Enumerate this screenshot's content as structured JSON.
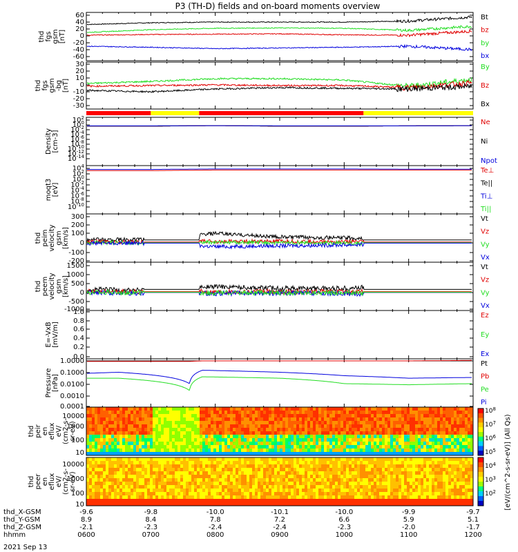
{
  "title": "P3 (TH-D) fields and on-board moments overview",
  "date_label": "2021 Sep 13",
  "colors": {
    "black": "#000000",
    "red": "#e00000",
    "green": "#22dd22",
    "blue": "#0000dd",
    "yellow": "#ffff00",
    "barred": "#ff0000"
  },
  "time_axis": {
    "rows": [
      {
        "label": "thd_X-GSM",
        "values": [
          "-9.6",
          "-9.8",
          "-10.0",
          "-10.1",
          "-10.0",
          "-9.9",
          "-9.7"
        ]
      },
      {
        "label": "thd_Y-GSM",
        "values": [
          "8.9",
          "8.4",
          "7.8",
          "7.2",
          "6.6",
          "5.9",
          "5.1"
        ]
      },
      {
        "label": "thd_Z-GSM",
        "values": [
          "-2.1",
          "-2.3",
          "-2.4",
          "-2.4",
          "-2.3",
          "-2.0",
          "-1.7"
        ]
      },
      {
        "label": "hhmm",
        "values": [
          "0600",
          "0700",
          "0800",
          "0900",
          "1000",
          "1100",
          "1200"
        ]
      }
    ]
  },
  "colorbar": {
    "label": "[eV/(cm^2-s-sr-eV)] (All Qs)",
    "ticks": [
      "10^8",
      "10^7",
      "10^6",
      "10^5",
      "10^4",
      "10^3",
      "10^2"
    ]
  },
  "chart_data": [
    {
      "type": "line",
      "ylabel": "thd fgs gsm [nT]",
      "yticks": [
        "60",
        "40",
        "20",
        "0",
        "-20",
        "-40",
        "-60"
      ],
      "ylim": [
        -60,
        60
      ],
      "legend": [
        {
          "name": "Bt",
          "color": "black"
        },
        {
          "name": "bz",
          "color": "red"
        },
        {
          "name": "by",
          "color": "green"
        },
        {
          "name": "bx",
          "color": "blue"
        }
      ],
      "x": [
        6,
        7,
        8,
        9,
        10,
        11,
        12
      ],
      "series": [
        {
          "name": "Bt",
          "values": [
            33,
            38,
            40,
            40,
            40,
            43,
            55
          ]
        },
        {
          "name": "bz",
          "values": [
            2,
            4,
            5,
            6,
            3,
            2,
            14
          ]
        },
        {
          "name": "by",
          "values": [
            10,
            18,
            22,
            23,
            22,
            16,
            28
          ]
        },
        {
          "name": "bx",
          "values": [
            -30,
            -33,
            -37,
            -35,
            -33,
            -30,
            -40
          ]
        }
      ]
    },
    {
      "type": "line",
      "ylabel": "thd fgs gsm [nT] -1 bg",
      "yticks": [
        "30",
        "20",
        "10",
        "0",
        "-10",
        "-20",
        "-30"
      ],
      "ylim": [
        -30,
        30
      ],
      "legend": [
        {
          "name": "By",
          "color": "green"
        },
        {
          "name": "Bz",
          "color": "red"
        },
        {
          "name": "Bx",
          "color": "black"
        }
      ],
      "x": [
        6,
        7,
        8,
        9,
        10,
        11,
        12
      ],
      "series": [
        {
          "name": "By",
          "values": [
            2,
            5,
            9,
            9,
            7,
            -2,
            8
          ]
        },
        {
          "name": "Bz",
          "values": [
            -2,
            -1,
            0,
            -1,
            -1,
            -4,
            3
          ]
        },
        {
          "name": "Bx",
          "values": [
            -8,
            -10,
            -6,
            -4,
            -5,
            -6,
            -2
          ]
        }
      ]
    },
    {
      "type": "line",
      "ylabel": "Density [cm-3]",
      "yticks": [
        "10^2",
        "10^0",
        "10^-2",
        "10^-4",
        "10^-6",
        "10^-8",
        "10^-10",
        "10^-12",
        "10^-14"
      ],
      "yscale": "log",
      "legend": [
        {
          "name": "Ne",
          "color": "red"
        },
        {
          "name": "Ni",
          "color": "black"
        },
        {
          "name": "Npot",
          "color": "blue"
        }
      ],
      "x": [
        6,
        7,
        8,
        9,
        10,
        11,
        12
      ],
      "series": [
        {
          "name": "Ne",
          "values": [
            0.3,
            0.3,
            0.5,
            0.3,
            0.3,
            0.4,
            0.5
          ]
        },
        {
          "name": "Ni",
          "values": [
            0.3,
            0.3,
            0.5,
            0.3,
            0.3,
            0.4,
            0.5
          ]
        },
        {
          "name": "Npot",
          "values": [
            0.4,
            0.4,
            0.5,
            0.4,
            0.4,
            0.4,
            0.5
          ]
        }
      ]
    },
    {
      "type": "line",
      "ylabel": "magt3 [eV]",
      "yticks": [
        "10^4",
        "10^2",
        "10^0",
        "10^-2",
        "10^-4",
        "10^-6",
        "10^-8",
        "10^-10"
      ],
      "yscale": "log",
      "legend": [
        {
          "name": "Te⊥",
          "color": "red"
        },
        {
          "name": "Te||",
          "color": "black"
        },
        {
          "name": "Ti⊥",
          "color": "blue"
        },
        {
          "name": "Ti||",
          "color": "green"
        }
      ],
      "x": [
        6,
        7,
        8,
        9,
        10,
        11,
        12
      ],
      "series": [
        {
          "name": "Te⊥",
          "values": [
            1500,
            1500,
            2500,
            2500,
            2500,
            2500,
            2500
          ]
        },
        {
          "name": "Ti⊥",
          "values": [
            4000,
            4000,
            6000,
            6000,
            6000,
            5000,
            5000
          ]
        }
      ]
    },
    {
      "type": "line",
      "ylabel": "thd peim velocity gsm [km/s]",
      "yticks": [
        "300",
        "200",
        "100",
        "0",
        "-100",
        "-200"
      ],
      "ylim": [
        -200,
        300
      ],
      "legend": [
        {
          "name": "Vt",
          "color": "black"
        },
        {
          "name": "Vz",
          "color": "red"
        },
        {
          "name": "Vy",
          "color": "green"
        },
        {
          "name": "Vx",
          "color": "blue"
        }
      ],
      "x": [
        6,
        7,
        8,
        9,
        10,
        11,
        12
      ],
      "series": [
        {
          "name": "Vt",
          "values": [
            40,
            40,
            110,
            70,
            60,
            40,
            40
          ]
        },
        {
          "name": "Vz",
          "values": [
            15,
            15,
            20,
            20,
            15,
            15,
            15
          ]
        },
        {
          "name": "Vy",
          "values": [
            5,
            5,
            10,
            5,
            0,
            5,
            5
          ]
        },
        {
          "name": "Vx",
          "values": [
            0,
            0,
            -40,
            -30,
            -20,
            -5,
            -5
          ]
        }
      ]
    },
    {
      "type": "line",
      "ylabel": "thd peem velocity gsm [km/s]",
      "yticks": [
        "1500",
        "1000",
        "500",
        "0",
        "-500",
        "-1000"
      ],
      "ylim": [
        -1000,
        1500
      ],
      "legend": [
        {
          "name": "Vt",
          "color": "black"
        },
        {
          "name": "Vz",
          "color": "red"
        },
        {
          "name": "Vy",
          "color": "green"
        },
        {
          "name": "Vx",
          "color": "blue"
        }
      ],
      "x": [
        6,
        7,
        8,
        9,
        10,
        11,
        12
      ],
      "series": [
        {
          "name": "Vt",
          "values": [
            150,
            80,
            300,
            200,
            200,
            350,
            250
          ]
        },
        {
          "name": "Vz",
          "values": [
            0,
            0,
            0,
            0,
            0,
            0,
            0
          ]
        },
        {
          "name": "Vx",
          "values": [
            -50,
            -80,
            -100,
            -80,
            -100,
            -250,
            -200
          ]
        },
        {
          "name": "Vy",
          "values": [
            -30,
            -50,
            -60,
            -60,
            -60,
            -150,
            -100
          ]
        }
      ]
    },
    {
      "type": "line",
      "ylabel": "E=-VxB [mV/m]",
      "yticks": [
        "1.0",
        "0.8",
        "0.6",
        "0.4",
        "0.2",
        "0.0"
      ],
      "ylim": [
        0,
        1
      ],
      "legend": [
        {
          "name": "Ez",
          "color": "red"
        },
        {
          "name": "Ey",
          "color": "green"
        },
        {
          "name": "Ex",
          "color": "blue"
        }
      ],
      "series": []
    },
    {
      "type": "line",
      "ylabel": "Pressure [nPa]",
      "yticks": [
        "1.0000",
        "0.1000",
        "0.0100",
        "0.0010",
        "0.0001"
      ],
      "yscale": "log",
      "legend": [
        {
          "name": "Pt",
          "color": "black"
        },
        {
          "name": "Pb",
          "color": "red"
        },
        {
          "name": "Pe",
          "color": "green"
        },
        {
          "name": "Pi",
          "color": "blue"
        }
      ],
      "x": [
        6,
        6.5,
        7.6,
        7.8,
        9,
        10,
        11,
        12
      ],
      "series": [
        {
          "name": "Pt",
          "values": [
            1,
            1,
            1,
            1,
            1,
            1,
            1,
            1
          ]
        },
        {
          "name": "Pb",
          "values": [
            0.9,
            0.9,
            0.9,
            1,
            1,
            1,
            1,
            1.1
          ]
        },
        {
          "name": "Pi",
          "values": [
            0.08,
            0.1,
            0.01,
            0.15,
            0.1,
            0.05,
            0.03,
            0.035
          ]
        },
        {
          "name": "Pe",
          "values": [
            0.03,
            0.03,
            0.0025,
            0.04,
            0.03,
            0.01,
            0.008,
            0.01
          ]
        }
      ]
    },
    {
      "type": "heatmap",
      "ylabel": "thd peir en eflux eV/(cm2-s-sr-eV)",
      "yticks": [
        "10000",
        "1000",
        "100",
        "10"
      ],
      "yscale": "log"
    },
    {
      "type": "heatmap",
      "ylabel": "thd peer en eflux eV/(cm2-s-sr-eV)",
      "yticks": [
        "10000",
        "1000",
        "100",
        "10"
      ],
      "yscale": "log"
    }
  ],
  "panel_labels": [
    [
      "thd",
      "fgs",
      "gsm",
      "[nT]"
    ],
    [
      "thd",
      "fgs",
      "gsm",
      "-bg",
      "[nT]"
    ],
    [
      "Density",
      "[cm-3]"
    ],
    [
      "moqt3",
      "[eV]"
    ],
    [
      "thd",
      "peim",
      "velocity",
      "gsm",
      "[km/s]"
    ],
    [
      "thd",
      "peem",
      "velocity",
      "gsm",
      "[km/s]"
    ],
    [
      "E=-VxB",
      "[mV/m]"
    ],
    [
      "Pressure",
      "[nPa]"
    ],
    [
      "thd",
      "peir",
      "en",
      "eflux",
      "eV/",
      "(cm2-s-",
      "sr-eV)"
    ],
    [
      "thd",
      "peer",
      "en",
      "eflux",
      "eV/",
      "(cm2-s-",
      "sr-eV)"
    ]
  ],
  "mode_bar": [
    {
      "from": 6.0,
      "to": 7.0,
      "color": "barred"
    },
    {
      "from": 7.0,
      "to": 7.75,
      "color": "yellow"
    },
    {
      "from": 7.75,
      "to": 10.3,
      "color": "barred"
    },
    {
      "from": 10.3,
      "to": 12.0,
      "color": "yellow"
    }
  ]
}
